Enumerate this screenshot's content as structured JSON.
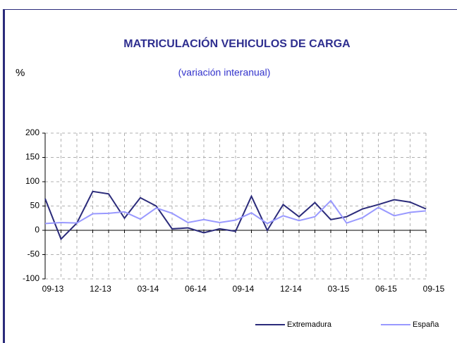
{
  "chart_data": {
    "type": "line",
    "title": "MATRICULACIÓN  VEHICULOS DE CARGA",
    "subtitle": "(variación interanual)",
    "y_label": "%",
    "categories": [
      "09-13",
      null,
      null,
      "12-13",
      null,
      null,
      "03-14",
      null,
      null,
      "06-14",
      null,
      null,
      "09-14",
      null,
      null,
      "12-14",
      null,
      null,
      "03-15",
      null,
      null,
      "06-15",
      null,
      null,
      "09-15"
    ],
    "series": [
      {
        "name": "Extremadura",
        "color": "#2b2b7a",
        "values": [
          65,
          -18,
          15,
          80,
          75,
          25,
          67,
          50,
          3,
          5,
          -5,
          3,
          -2,
          70,
          0,
          53,
          28,
          57,
          22,
          28,
          44,
          53,
          63,
          58,
          44
        ]
      },
      {
        "name": "España",
        "color": "#9999ff",
        "values": [
          14,
          16,
          15,
          34,
          35,
          38,
          23,
          46,
          35,
          16,
          22,
          16,
          21,
          36,
          14,
          30,
          20,
          28,
          61,
          15,
          26,
          47,
          30,
          37,
          40
        ]
      }
    ],
    "ylim": [
      -100,
      200
    ],
    "yticks": [
      -100,
      -50,
      0,
      50,
      100,
      150,
      200
    ],
    "grid": true,
    "legend": "bottom-right"
  }
}
